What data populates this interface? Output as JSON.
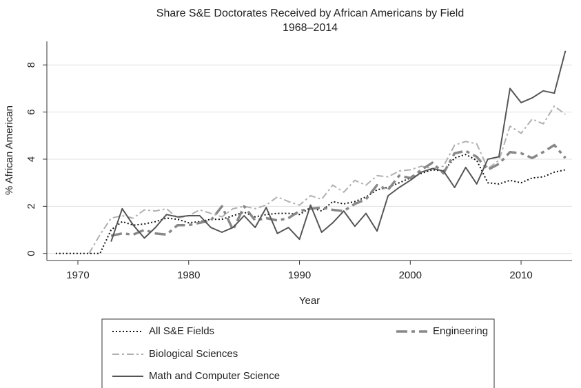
{
  "chart_data": {
    "type": "line",
    "title": "Share S&E Doctorates Received by African Americans by Field",
    "subtitle": "1968–2014",
    "x_label": "Year",
    "y_label": "% African American",
    "x": [
      1968,
      1969,
      1970,
      1971,
      1972,
      1973,
      1974,
      1975,
      1976,
      1977,
      1978,
      1979,
      1980,
      1981,
      1982,
      1983,
      1984,
      1985,
      1986,
      1987,
      1988,
      1989,
      1990,
      1991,
      1992,
      1993,
      1994,
      1995,
      1996,
      1997,
      1998,
      1999,
      2000,
      2001,
      2002,
      2003,
      2004,
      2005,
      2006,
      2007,
      2008,
      2009,
      2010,
      2011,
      2012,
      2013,
      2014
    ],
    "series": [
      {
        "name": "All S&E Fields",
        "color": "#111111",
        "values": [
          0,
          0,
          0,
          0,
          0,
          1.0,
          1.35,
          1.2,
          1.25,
          1.35,
          1.5,
          1.45,
          1.3,
          1.35,
          1.45,
          1.45,
          1.6,
          1.75,
          1.55,
          1.65,
          1.7,
          1.7,
          1.65,
          1.95,
          1.8,
          2.2,
          2.1,
          2.2,
          2.4,
          2.7,
          2.8,
          3.0,
          3.2,
          3.4,
          3.55,
          3.5,
          4.05,
          4.2,
          3.95,
          3.0,
          2.95,
          3.1,
          3.0,
          3.2,
          3.25,
          3.45,
          3.55
        ]
      },
      {
        "name": "Biological Sciences",
        "color": "#b0b0b0",
        "values": [
          null,
          null,
          null,
          0,
          0.8,
          1.5,
          1.6,
          1.5,
          1.85,
          1.8,
          1.9,
          1.5,
          1.6,
          1.85,
          1.7,
          1.55,
          1.9,
          2.0,
          1.9,
          2.05,
          2.4,
          2.2,
          2.05,
          2.45,
          2.3,
          2.9,
          2.6,
          3.1,
          2.9,
          3.3,
          3.25,
          3.5,
          3.55,
          3.7,
          3.6,
          3.7,
          4.6,
          4.75,
          4.65,
          3.6,
          3.95,
          5.4,
          5.1,
          5.7,
          5.5,
          6.25,
          5.9
        ]
      },
      {
        "name": "Engineering",
        "color": "#888888",
        "values": [
          null,
          null,
          null,
          null,
          null,
          0.75,
          0.85,
          0.8,
          1.0,
          0.85,
          0.8,
          1.2,
          1.2,
          1.3,
          1.4,
          2.0,
          1.0,
          2.0,
          1.4,
          1.5,
          1.4,
          1.5,
          1.8,
          1.9,
          1.95,
          1.85,
          1.8,
          2.1,
          2.3,
          2.9,
          2.7,
          3.3,
          3.2,
          3.55,
          3.85,
          3.4,
          4.25,
          4.35,
          4.1,
          3.55,
          3.8,
          4.3,
          4.25,
          4.05,
          4.3,
          4.6,
          4.05
        ]
      },
      {
        "name": "Math and Computer Science",
        "color": "#555555",
        "values": [
          null,
          null,
          null,
          null,
          null,
          0.5,
          1.9,
          1.2,
          0.65,
          1.1,
          1.65,
          1.55,
          1.6,
          1.6,
          1.1,
          0.9,
          1.1,
          1.6,
          1.1,
          1.95,
          0.85,
          1.1,
          0.6,
          2.05,
          0.9,
          1.3,
          1.8,
          1.15,
          1.7,
          0.95,
          2.45,
          2.8,
          3.1,
          3.45,
          3.6,
          3.5,
          2.8,
          3.65,
          2.95,
          4.0,
          4.1,
          7.0,
          6.4,
          6.6,
          6.9,
          6.8,
          8.6
        ]
      }
    ],
    "xlim": [
      1967.2,
      2014.6
    ],
    "xticks": [
      1970,
      1980,
      1990,
      2000,
      2010
    ],
    "ylim": [
      -0.3,
      9
    ],
    "yticks": [
      0,
      2,
      4,
      6,
      8
    ],
    "grid": true
  }
}
